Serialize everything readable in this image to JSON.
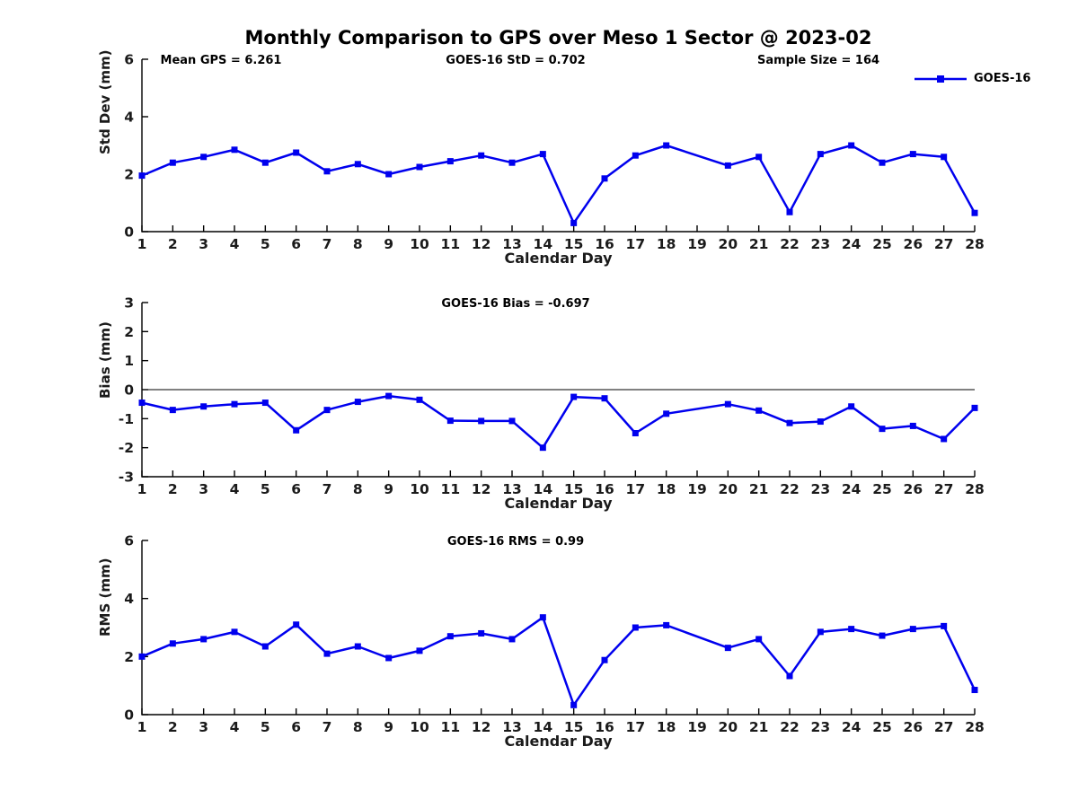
{
  "title": "Monthly Comparison to GPS over Meso 1 Sector @ 2023-02",
  "legend": {
    "label": "GOES-16",
    "color": "#0000EE"
  },
  "accent_color": "#0000EE",
  "chart_data": [
    {
      "type": "line",
      "annotations": [
        "Mean GPS = 6.261",
        "GOES-16 StD = 0.702",
        "Sample Size = 164"
      ],
      "ylabel": "Std Dev (mm)",
      "xlabel": "Calendar Day",
      "ylim": [
        0,
        6
      ],
      "yticks": [
        0,
        2,
        4,
        6
      ],
      "xlim": [
        1,
        28
      ],
      "xticks": [
        1,
        2,
        3,
        4,
        5,
        6,
        7,
        8,
        9,
        10,
        11,
        12,
        13,
        14,
        15,
        16,
        17,
        18,
        19,
        20,
        21,
        22,
        23,
        24,
        25,
        26,
        27,
        28
      ],
      "grid": false,
      "legend_position": "top-right-outside",
      "series": [
        {
          "name": "GOES-16",
          "color": "#0000EE",
          "marker": "square",
          "x": [
            1,
            2,
            3,
            4,
            5,
            6,
            7,
            8,
            9,
            10,
            11,
            12,
            13,
            14,
            15,
            16,
            17,
            18,
            20,
            21,
            22,
            23,
            24,
            25,
            26,
            27,
            28
          ],
          "values": [
            1.95,
            2.4,
            2.6,
            2.85,
            2.4,
            2.75,
            2.1,
            2.35,
            2.0,
            2.25,
            2.45,
            2.65,
            2.4,
            2.7,
            0.3,
            1.85,
            2.65,
            3.0,
            2.3,
            2.6,
            0.68,
            2.7,
            3.0,
            2.4,
            2.7,
            2.6,
            0.65
          ]
        }
      ]
    },
    {
      "type": "line",
      "subtitle": "GOES-16 Bias = -0.697",
      "ylabel": "Bias (mm)",
      "xlabel": "Calendar Day",
      "ylim": [
        -3,
        3
      ],
      "yticks": [
        -3,
        -2,
        -1,
        0,
        1,
        2,
        3
      ],
      "xlim": [
        1,
        28
      ],
      "xticks": [
        1,
        2,
        3,
        4,
        5,
        6,
        7,
        8,
        9,
        10,
        11,
        12,
        13,
        14,
        15,
        16,
        17,
        18,
        19,
        20,
        21,
        22,
        23,
        24,
        25,
        26,
        27,
        28
      ],
      "zero_line": true,
      "grid": false,
      "series": [
        {
          "name": "GOES-16",
          "color": "#0000EE",
          "marker": "square",
          "x": [
            1,
            2,
            3,
            4,
            5,
            6,
            7,
            8,
            9,
            10,
            11,
            12,
            13,
            14,
            15,
            16,
            17,
            18,
            20,
            21,
            22,
            23,
            24,
            25,
            26,
            27,
            28
          ],
          "values": [
            -0.45,
            -0.7,
            -0.58,
            -0.5,
            -0.45,
            -1.4,
            -0.7,
            -0.42,
            -0.22,
            -0.35,
            -1.07,
            -1.08,
            -1.08,
            -2.0,
            -0.25,
            -0.3,
            -1.5,
            -0.83,
            -0.5,
            -0.72,
            -1.15,
            -1.1,
            -0.58,
            -1.35,
            -1.25,
            -1.7,
            -0.63
          ]
        }
      ]
    },
    {
      "type": "line",
      "subtitle": "GOES-16 RMS = 0.99",
      "ylabel": "RMS (mm)",
      "xlabel": "Calendar Day",
      "ylim": [
        0,
        6
      ],
      "yticks": [
        0,
        2,
        4,
        6
      ],
      "xlim": [
        1,
        28
      ],
      "xticks": [
        1,
        2,
        3,
        4,
        5,
        6,
        7,
        8,
        9,
        10,
        11,
        12,
        13,
        14,
        15,
        16,
        17,
        18,
        19,
        20,
        21,
        22,
        23,
        24,
        25,
        26,
        27,
        28
      ],
      "grid": false,
      "series": [
        {
          "name": "GOES-16",
          "color": "#0000EE",
          "marker": "square",
          "x": [
            1,
            2,
            3,
            4,
            5,
            6,
            7,
            8,
            9,
            10,
            11,
            12,
            13,
            14,
            15,
            16,
            17,
            18,
            20,
            21,
            22,
            23,
            24,
            25,
            26,
            27,
            28
          ],
          "values": [
            2.0,
            2.45,
            2.6,
            2.85,
            2.35,
            3.1,
            2.1,
            2.35,
            1.95,
            2.2,
            2.7,
            2.8,
            2.6,
            3.35,
            0.33,
            1.88,
            3.0,
            3.08,
            2.3,
            2.6,
            1.33,
            2.85,
            2.95,
            2.72,
            2.95,
            3.05,
            0.85
          ]
        }
      ]
    }
  ]
}
